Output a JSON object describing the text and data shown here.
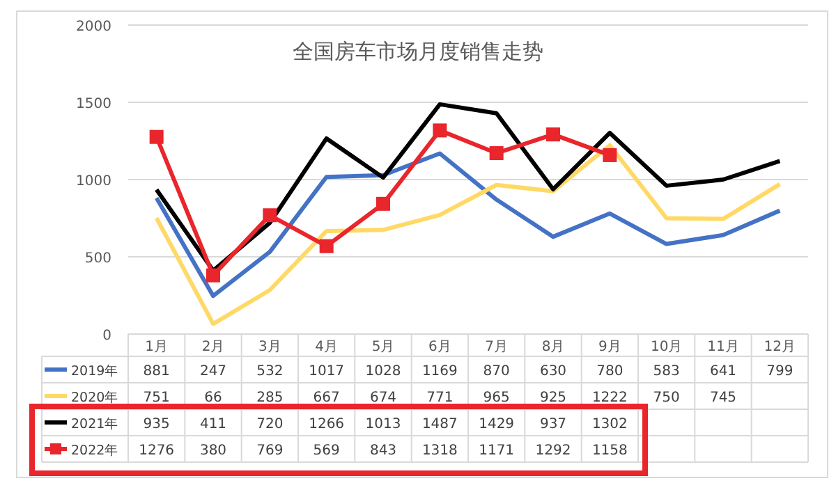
{
  "chart_data": {
    "type": "line",
    "title": "全国房车市场月度销售走势",
    "categories": [
      "1月",
      "2月",
      "3月",
      "4月",
      "5月",
      "6月",
      "7月",
      "8月",
      "9月",
      "10月",
      "11月",
      "12月"
    ],
    "ylim": [
      0,
      2000
    ],
    "yticks": [
      0,
      500,
      1000,
      1500,
      2000
    ],
    "grid": "y",
    "legend": "bottom",
    "series": [
      {
        "name": "2019年",
        "color": "#4472c4",
        "marker": "none",
        "values": [
          881,
          247,
          532,
          1017,
          1028,
          1169,
          870,
          630,
          780,
          583,
          641,
          799
        ],
        "value_labels": [
          "881",
          "247",
          "532",
          "1017",
          "1028",
          "1169",
          "870",
          "630",
          "780",
          "583",
          "641",
          "799"
        ]
      },
      {
        "name": "2020年",
        "color": "#ffd966",
        "marker": "none",
        "values": [
          751,
          66,
          285,
          667,
          674,
          771,
          965,
          925,
          1222,
          750,
          745,
          970
        ],
        "value_labels": [
          "751",
          "66",
          "285",
          "667",
          "674",
          "771",
          "965",
          "925",
          "1222",
          "750",
          "745",
          null
        ]
      },
      {
        "name": "2021年",
        "color": "#000000",
        "marker": "none",
        "values": [
          935,
          411,
          720,
          1266,
          1013,
          1487,
          1429,
          937,
          1302,
          960,
          1000,
          1120
        ],
        "value_labels": [
          "935",
          "411",
          "720",
          "1266",
          "1013",
          "1487",
          "1429",
          "937",
          "1302",
          null,
          null,
          null
        ]
      },
      {
        "name": "2022年",
        "color": "#e8262b",
        "marker": "square",
        "values": [
          1276,
          380,
          769,
          569,
          843,
          1318,
          1171,
          1292,
          1158,
          null,
          null,
          null
        ],
        "value_labels": [
          "1276",
          "380",
          "769",
          "569",
          "843",
          "1318",
          "1171",
          "1292",
          "1158",
          null,
          null,
          null
        ]
      }
    ]
  }
}
